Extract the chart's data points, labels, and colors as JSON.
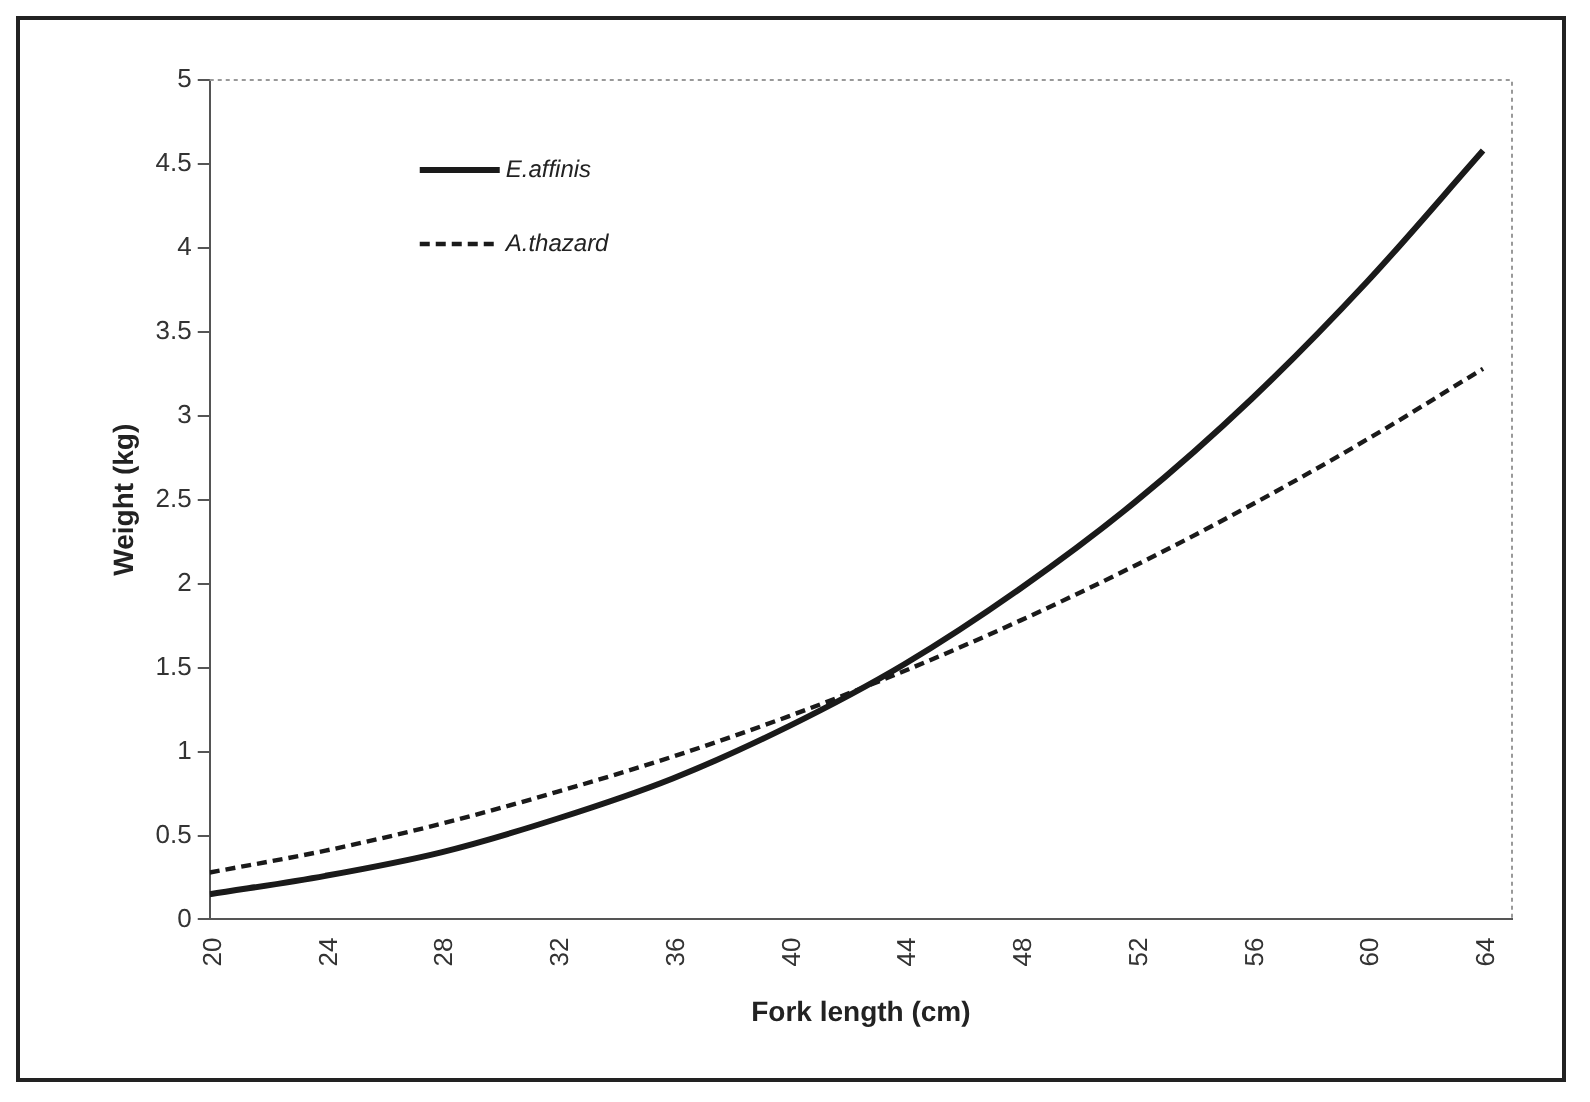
{
  "chart_data": {
    "type": "line",
    "xlabel": "Fork length (cm)",
    "ylabel": "Weight (kg)",
    "x": [
      20,
      24,
      28,
      32,
      36,
      40,
      44,
      48,
      52,
      56,
      60,
      64
    ],
    "series": [
      {
        "name": "E.affinis",
        "color": "#1a1a1a",
        "line_style": "solid",
        "values": [
          0.15,
          0.26,
          0.4,
          0.6,
          0.84,
          1.15,
          1.52,
          1.97,
          2.49,
          3.1,
          3.8,
          4.58
        ]
      },
      {
        "name": "A.thazard",
        "color": "#1a1a1a",
        "line_style": "dashed",
        "values": [
          0.28,
          0.41,
          0.57,
          0.76,
          0.97,
          1.21,
          1.48,
          1.78,
          2.11,
          2.47,
          2.86,
          3.28
        ]
      }
    ],
    "xlim": [
      20,
      65
    ],
    "xticks": [
      20,
      24,
      28,
      32,
      36,
      40,
      44,
      48,
      52,
      56,
      60,
      64
    ],
    "ylim": [
      0,
      5
    ],
    "yticks": [
      0,
      0.5,
      1,
      1.5,
      2,
      2.5,
      3,
      3.5,
      4,
      4.5,
      5
    ],
    "grid": false,
    "legend": "top left",
    "marker": "none"
  }
}
